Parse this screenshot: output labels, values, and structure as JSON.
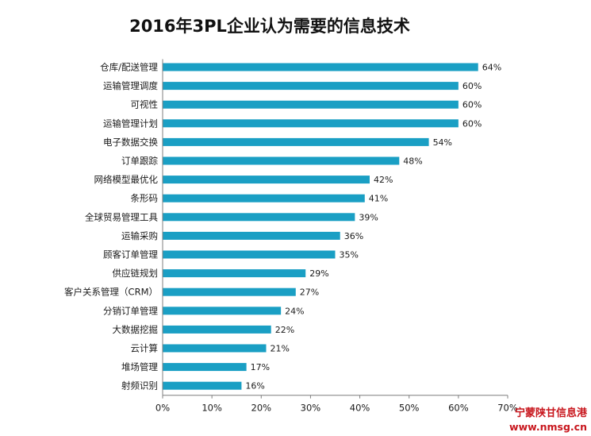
{
  "chart_data": {
    "type": "bar",
    "orientation": "horizontal",
    "title": "2016年3PL企业认为需要的信息技术",
    "categories": [
      "仓库/配送管理",
      "运输管理调度",
      "可视性",
      "运输管理计划",
      "电子数据交换",
      "订单跟踪",
      "网络模型最优化",
      "条形码",
      "全球贸易管理工具",
      "运输采购",
      "顾客订单管理",
      "供应链规划",
      "客户关系管理（CRM）",
      "分销订单管理",
      "大数据挖掘",
      "云计算",
      "堆场管理",
      "射频识别"
    ],
    "values": [
      64,
      60,
      60,
      60,
      54,
      48,
      42,
      41,
      39,
      36,
      35,
      29,
      27,
      24,
      22,
      21,
      17,
      16
    ],
    "value_labels": [
      "64%",
      "60%",
      "60%",
      "60%",
      "54%",
      "48%",
      "42%",
      "41%",
      "39%",
      "36%",
      "35%",
      "29%",
      "27%",
      "24%",
      "22%",
      "21%",
      "17%",
      "16%"
    ],
    "xlim": [
      0,
      70
    ],
    "x_ticks": [
      0,
      10,
      20,
      30,
      40,
      50,
      60,
      70
    ],
    "x_tick_labels": [
      "0%",
      "10%",
      "20%",
      "30%",
      "40%",
      "50%",
      "60%",
      "70%"
    ],
    "bar_color": "#1a9fc4",
    "grid": false,
    "legend": "none"
  },
  "watermark": {
    "line1": "宁蒙陕甘信息港",
    "line2": "www.nmsg.cn",
    "color": "#c8161d"
  }
}
